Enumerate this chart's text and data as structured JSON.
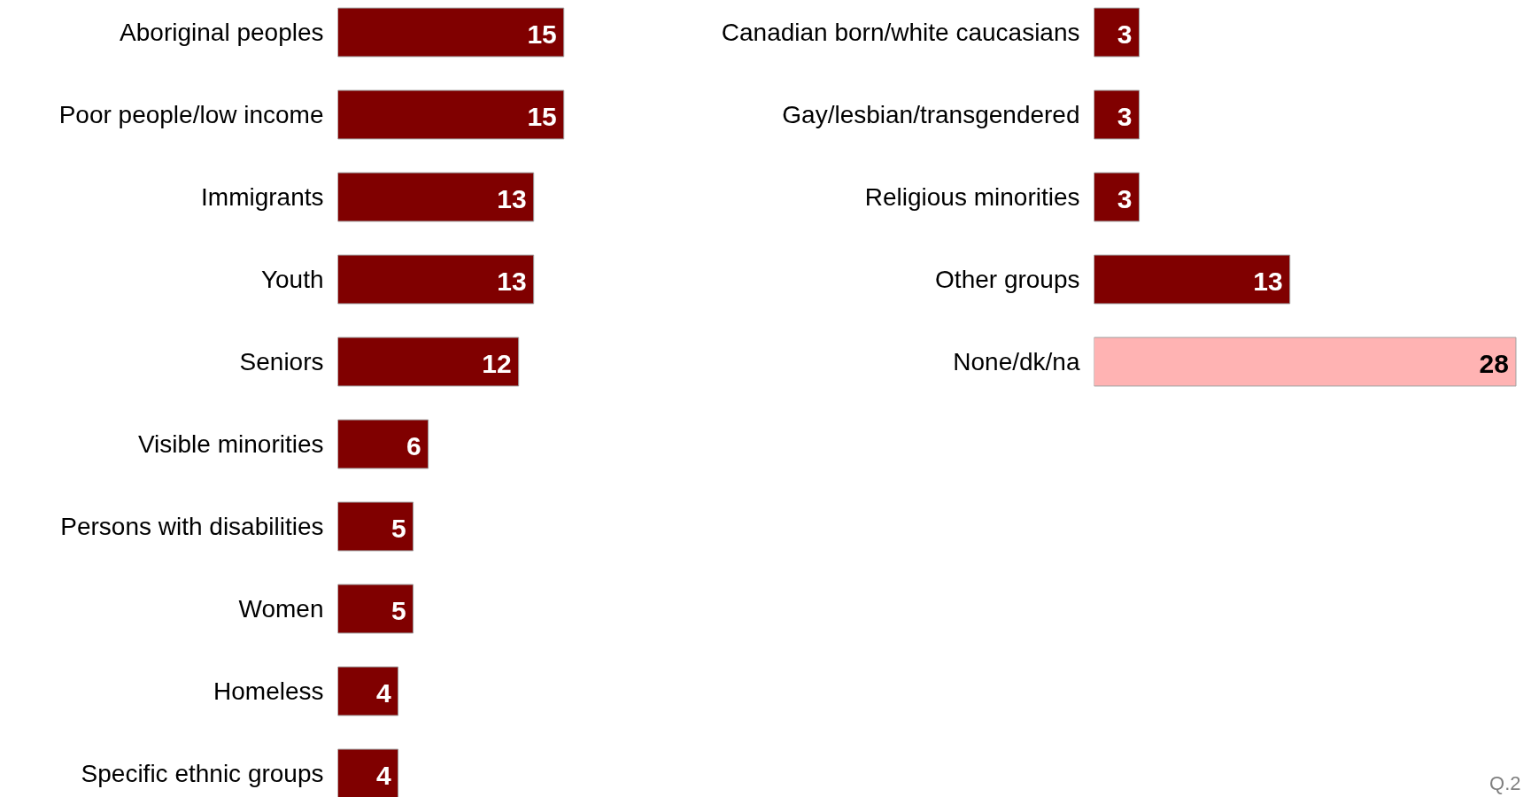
{
  "chart_data": [
    {
      "type": "bar",
      "orientation": "horizontal",
      "data_labels": true,
      "categories": [
        "Aboriginal peoples",
        "Poor people/low income",
        "Immigrants",
        "Youth",
        "Seniors",
        "Visible minorities",
        "Persons with disabilities",
        "Women",
        "Homeless",
        "Specific ethnic groups"
      ],
      "values": [
        15,
        15,
        13,
        13,
        12,
        6,
        5,
        5,
        4,
        4
      ],
      "colors": [
        "#800000",
        "#800000",
        "#800000",
        "#800000",
        "#800000",
        "#800000",
        "#800000",
        "#800000",
        "#800000",
        "#800000"
      ]
    },
    {
      "type": "bar",
      "orientation": "horizontal",
      "data_labels": true,
      "categories": [
        "Canadian born/white caucasians",
        "Gay/lesbian/transgendered",
        "Religious minorities",
        "Other groups",
        "None/dk/na"
      ],
      "values": [
        3,
        3,
        3,
        13,
        28
      ],
      "colors": [
        "#800000",
        "#800000",
        "#800000",
        "#800000",
        "#ffb3b3"
      ],
      "annotations": [
        "Q.2"
      ]
    }
  ]
}
